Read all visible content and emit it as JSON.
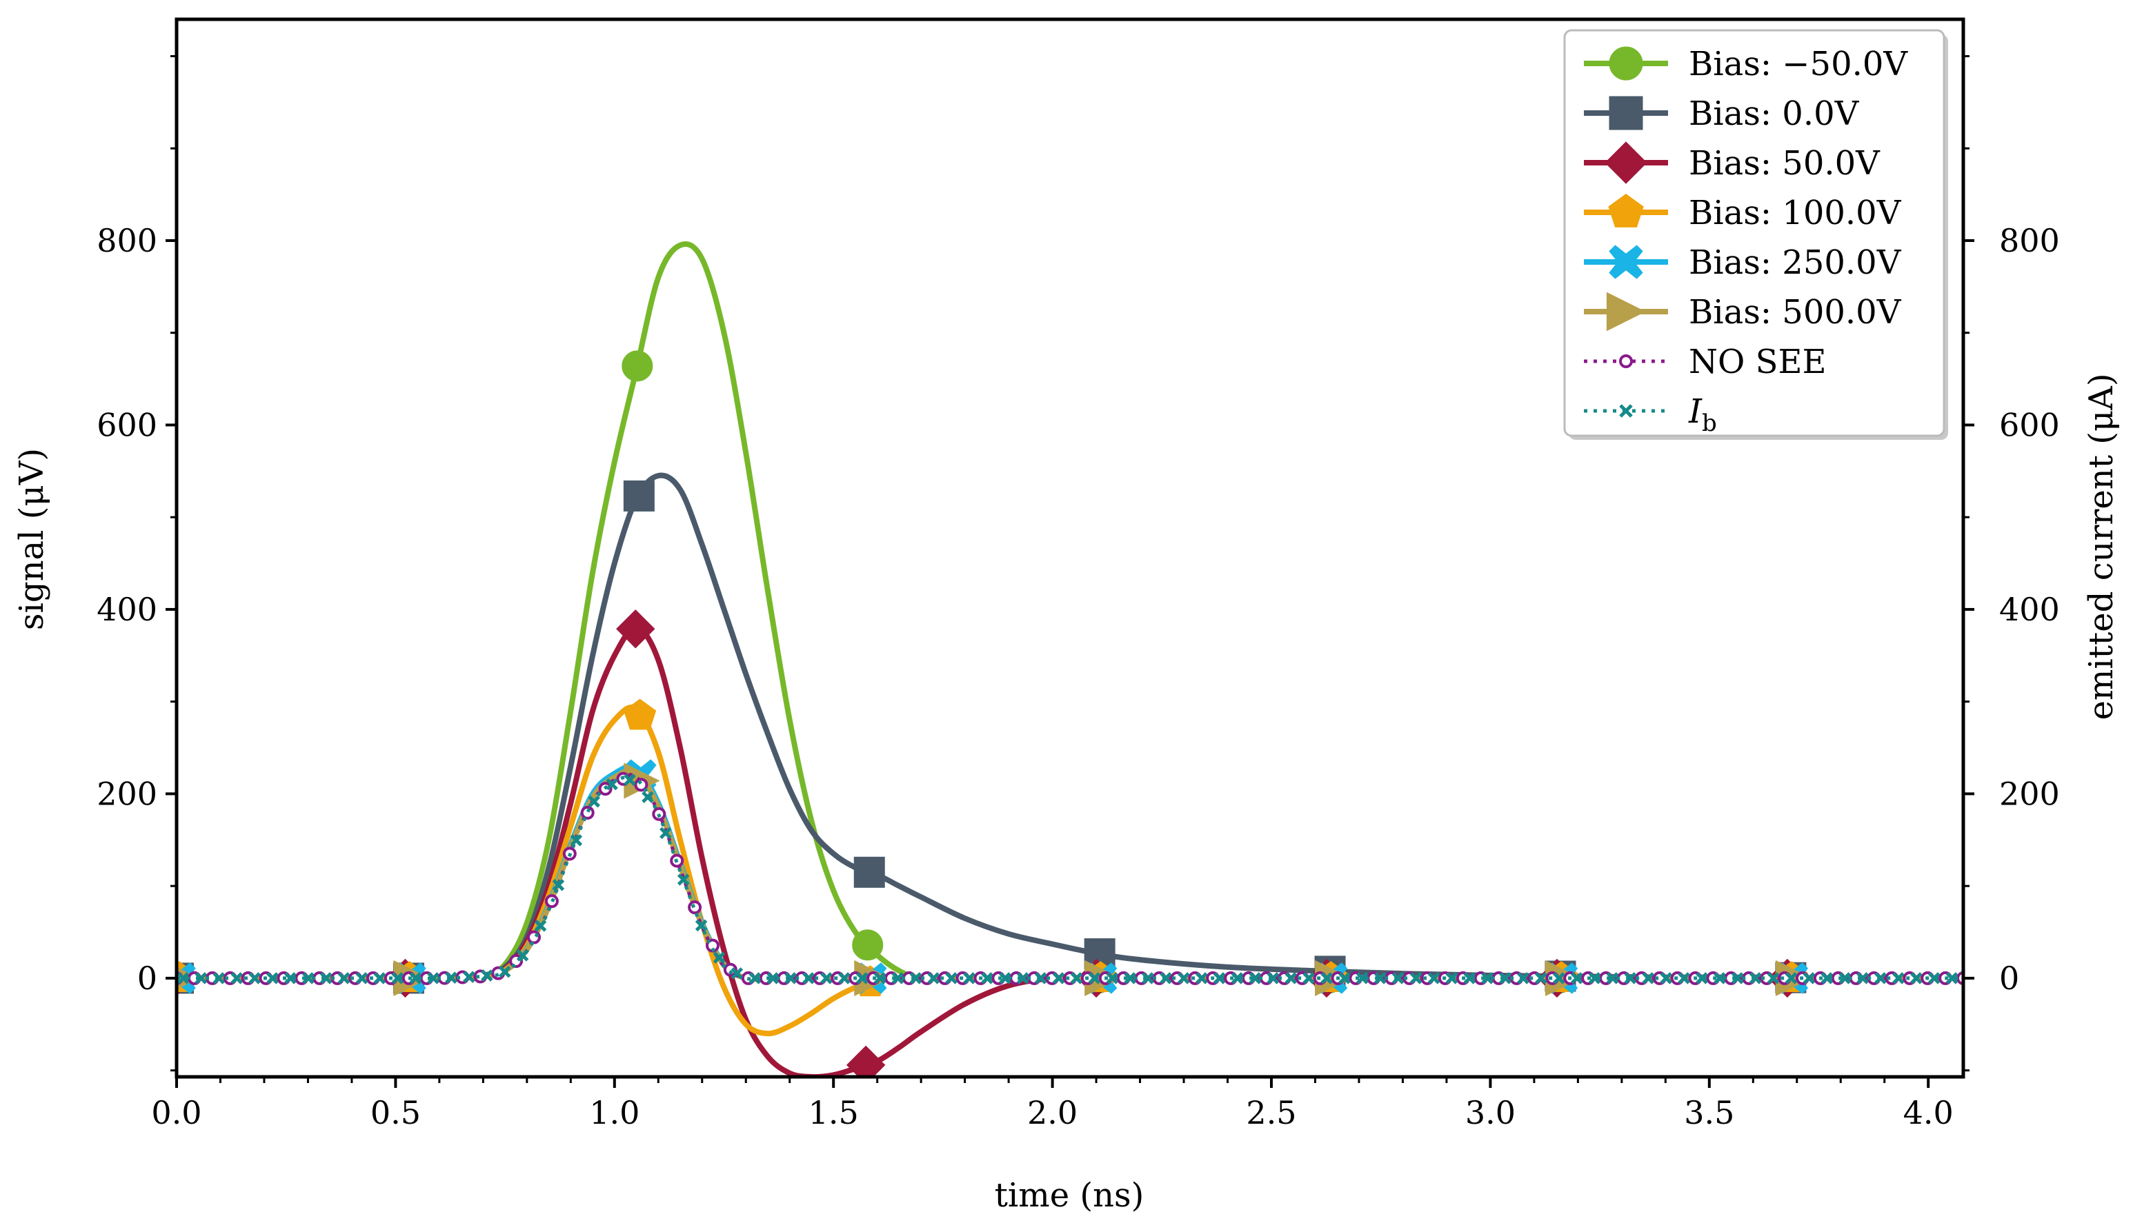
{
  "chart_data": {
    "type": "line",
    "title": "",
    "xlabel": "time (ns)",
    "ylabel": "signal (μV)",
    "y2label": "emitted current (μA)",
    "xlim": [
      0.0,
      4.08
    ],
    "ylim": [
      -107,
      1040
    ],
    "y2lim": [
      -107,
      1040
    ],
    "xticks": [
      "0.0",
      "0.5",
      "1.0",
      "1.5",
      "2.0",
      "2.5",
      "3.0",
      "3.5",
      "4.0"
    ],
    "yticks": [
      "0",
      "200",
      "400",
      "600",
      "800"
    ],
    "y2ticks": [
      "0",
      "200",
      "400",
      "600",
      "800"
    ],
    "grid": false,
    "legend_position": "top-right",
    "x": [
      0.0,
      0.1,
      0.2,
      0.3,
      0.4,
      0.5,
      0.6,
      0.7,
      0.75,
      0.8,
      0.85,
      0.9,
      0.95,
      1.0,
      1.05,
      1.1,
      1.15,
      1.2,
      1.25,
      1.3,
      1.35,
      1.4,
      1.45,
      1.5,
      1.55,
      1.6,
      1.65,
      1.7,
      1.8,
      1.9,
      2.0,
      2.1,
      2.2,
      2.4,
      2.6,
      2.8,
      3.0,
      3.2,
      3.4,
      3.6,
      3.8,
      4.0,
      4.08
    ],
    "series": [
      {
        "name": "Bias: −50.0V",
        "color": "#77b82a",
        "marker": "circle",
        "values": [
          0,
          0,
          0,
          0,
          0,
          0,
          0,
          3,
          15,
          60,
          150,
          290,
          440,
          560,
          660,
          760,
          795,
          780,
          700,
          570,
          420,
          280,
          170,
          95,
          50,
          25,
          8,
          0,
          0,
          0,
          0,
          0,
          0,
          0,
          0,
          0,
          0,
          0,
          0,
          0,
          0,
          0,
          0
        ]
      },
      {
        "name": "Bias: 0.0V",
        "color": "#4a5a6a",
        "marker": "square",
        "values": [
          0,
          0,
          0,
          0,
          0,
          0,
          0,
          3,
          12,
          45,
          120,
          230,
          350,
          450,
          520,
          545,
          530,
          470,
          400,
          330,
          265,
          205,
          160,
          135,
          120,
          112,
          100,
          88,
          65,
          48,
          37,
          27,
          20,
          12,
          8,
          5,
          3,
          2,
          1,
          1,
          0,
          0,
          0
        ]
      },
      {
        "name": "Bias: 50.0V",
        "color": "#a0173a",
        "marker": "diamond",
        "values": [
          0,
          0,
          0,
          0,
          0,
          0,
          0,
          2,
          10,
          40,
          100,
          190,
          290,
          350,
          380,
          345,
          250,
          130,
          30,
          -45,
          -85,
          -103,
          -107,
          -105,
          -98,
          -90,
          -75,
          -58,
          -28,
          -8,
          0,
          0,
          0,
          0,
          0,
          0,
          0,
          0,
          0,
          0,
          0,
          0,
          0
        ]
      },
      {
        "name": "Bias: 100.0V",
        "color": "#f0a30a",
        "marker": "pentagon",
        "values": [
          0,
          0,
          0,
          0,
          0,
          0,
          0,
          2,
          9,
          35,
          90,
          165,
          240,
          280,
          292,
          245,
          150,
          60,
          -10,
          -50,
          -60,
          -52,
          -38,
          -22,
          -10,
          -2,
          0,
          0,
          0,
          0,
          0,
          0,
          0,
          0,
          0,
          0,
          0,
          0,
          0,
          0,
          0,
          0,
          0
        ]
      },
      {
        "name": "Bias: 250.0V",
        "color": "#1ab4e6",
        "marker": "x-filled",
        "values": [
          0,
          0,
          0,
          0,
          0,
          0,
          0,
          2,
          8,
          32,
          80,
          145,
          200,
          222,
          228,
          190,
          125,
          60,
          15,
          0,
          0,
          0,
          0,
          0,
          0,
          0,
          0,
          0,
          0,
          0,
          0,
          0,
          0,
          0,
          0,
          0,
          0,
          0,
          0,
          0,
          0,
          0,
          0
        ]
      },
      {
        "name": "Bias: 500.0V",
        "color": "#b8a04a",
        "marker": "triangle-right",
        "values": [
          0,
          0,
          0,
          0,
          0,
          0,
          0,
          2,
          8,
          31,
          78,
          142,
          196,
          218,
          223,
          186,
          122,
          58,
          14,
          0,
          0,
          0,
          0,
          0,
          0,
          0,
          0,
          0,
          0,
          0,
          0,
          0,
          0,
          0,
          0,
          0,
          0,
          0,
          0,
          0,
          0,
          0,
          0
        ]
      },
      {
        "name": "NO SEE",
        "color": "#8b1a8b",
        "marker": "small-circle",
        "dotted": true,
        "values": [
          0,
          0,
          0,
          0,
          0,
          0,
          0,
          2,
          7,
          30,
          75,
          138,
          192,
          215,
          218,
          180,
          118,
          56,
          13,
          0,
          0,
          0,
          0,
          0,
          0,
          0,
          0,
          0,
          0,
          0,
          0,
          0,
          0,
          0,
          0,
          0,
          0,
          0,
          0,
          0,
          0,
          0,
          0
        ]
      },
      {
        "name": "I_b",
        "color": "#168a8a",
        "marker": "small-x",
        "dotted": true,
        "values": [
          0,
          0,
          0,
          0,
          0,
          0,
          0,
          2,
          7,
          29,
          74,
          136,
          190,
          213,
          216,
          178,
          116,
          55,
          13,
          0,
          0,
          0,
          0,
          0,
          0,
          0,
          0,
          0,
          0,
          0,
          0,
          0,
          0,
          0,
          0,
          0,
          0,
          0,
          0,
          0,
          0,
          0,
          0
        ]
      }
    ]
  }
}
